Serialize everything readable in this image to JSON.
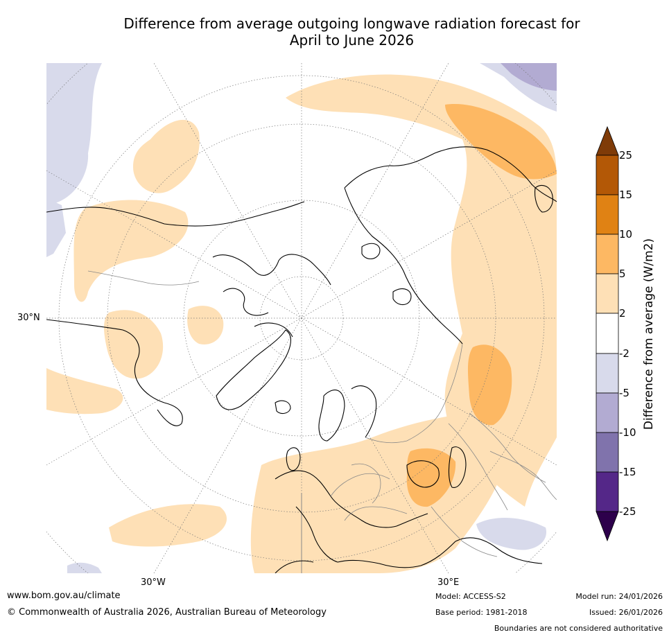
{
  "title": {
    "line1": "Difference from average outgoing longwave radiation forecast for",
    "line2": "April to June 2026"
  },
  "map": {
    "projection": "north-polar-stereographic",
    "lat_labels": [
      {
        "text": "30°N"
      }
    ],
    "lon_labels": [
      {
        "text": "30°W"
      },
      {
        "text": "30°E"
      }
    ]
  },
  "colorbar": {
    "title": "Difference from average (W/m2)",
    "ticks": [
      "25",
      "15",
      "10",
      "5",
      "2",
      "-2",
      "-5",
      "-10",
      "-15",
      "-25"
    ],
    "colors": {
      "over": "#7f3b08",
      "b15_25": "#b35806",
      "b10_15": "#e08214",
      "b5_10": "#fdb863",
      "b2_5": "#fee0b6",
      "neutral": "#ffffff",
      "bm5_m2": "#d8daeb",
      "bm10_m5": "#b2abd2",
      "bm15_m10": "#8073ac",
      "bm25_m15": "#542788",
      "under": "#2d004b"
    }
  },
  "colors": {
    "land_outline": "#000000",
    "border": "#888888",
    "grid": "#777777"
  },
  "footer": {
    "website": "www.bom.gov.au/climate",
    "copyright": "© Commonwealth of Australia 2026, Australian Bureau of Meteorology",
    "model": "Model: ACCESS-S2",
    "base_period": "Base period: 1981-2018",
    "model_run": "Model run: 24/01/2026",
    "issued": "Issued: 26/01/2026",
    "disclaimer": "Boundaries are not considered authoritative"
  }
}
